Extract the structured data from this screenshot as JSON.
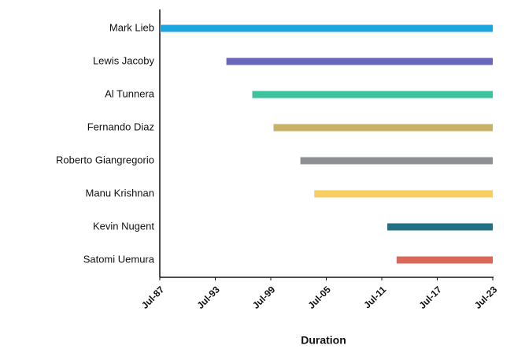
{
  "chart_data": {
    "type": "range_bar",
    "orientation": "horizontal",
    "x_label": "Duration",
    "categories": [
      "Mark Lieb",
      "Lewis Jacoby",
      "Al Tunnera",
      "Fernando Diaz",
      "Roberto Giangregorio",
      "Manu Krishnan",
      "Kevin Nugent",
      "Satomi Uemura"
    ],
    "start": [
      1987.5,
      1994.7,
      1997.5,
      1999.8,
      2002.7,
      2004.2,
      2012.1,
      2013.1
    ],
    "end": [
      2023.5,
      2023.5,
      2023.5,
      2023.5,
      2023.5,
      2023.5,
      2023.5,
      2023.5
    ],
    "colors": [
      "#1ba6e0",
      "#6b66bd",
      "#3cc39e",
      "#c9b265",
      "#8d8f92",
      "#f7cd5f",
      "#236f83",
      "#d9675a"
    ],
    "xlim": [
      1987.5,
      2023.5
    ],
    "xticks": [
      {
        "value": 1987.5,
        "label": "Jul-87"
      },
      {
        "value": 1993.5,
        "label": "Jul-93"
      },
      {
        "value": 1999.5,
        "label": "Jul-99"
      },
      {
        "value": 2005.5,
        "label": "Jul-05"
      },
      {
        "value": 2011.5,
        "label": "Jul-11"
      },
      {
        "value": 2017.5,
        "label": "Jul-17"
      },
      {
        "value": 2023.5,
        "label": "Jul-23"
      }
    ]
  }
}
